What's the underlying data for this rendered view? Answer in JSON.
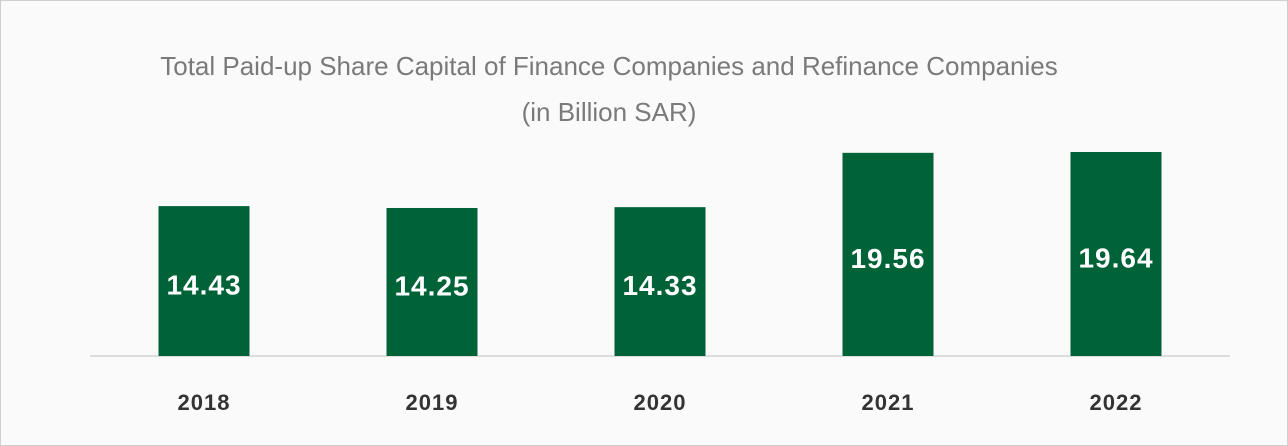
{
  "chart_data": {
    "type": "bar",
    "title": "Total Paid-up Share Capital of Finance Companies and Refinance Companies (in Billion SAR)",
    "categories": [
      "2018",
      "2019",
      "2020",
      "2021",
      "2022"
    ],
    "values": [
      14.43,
      14.25,
      14.33,
      19.56,
      19.64
    ],
    "color": "#006338"
  }
}
